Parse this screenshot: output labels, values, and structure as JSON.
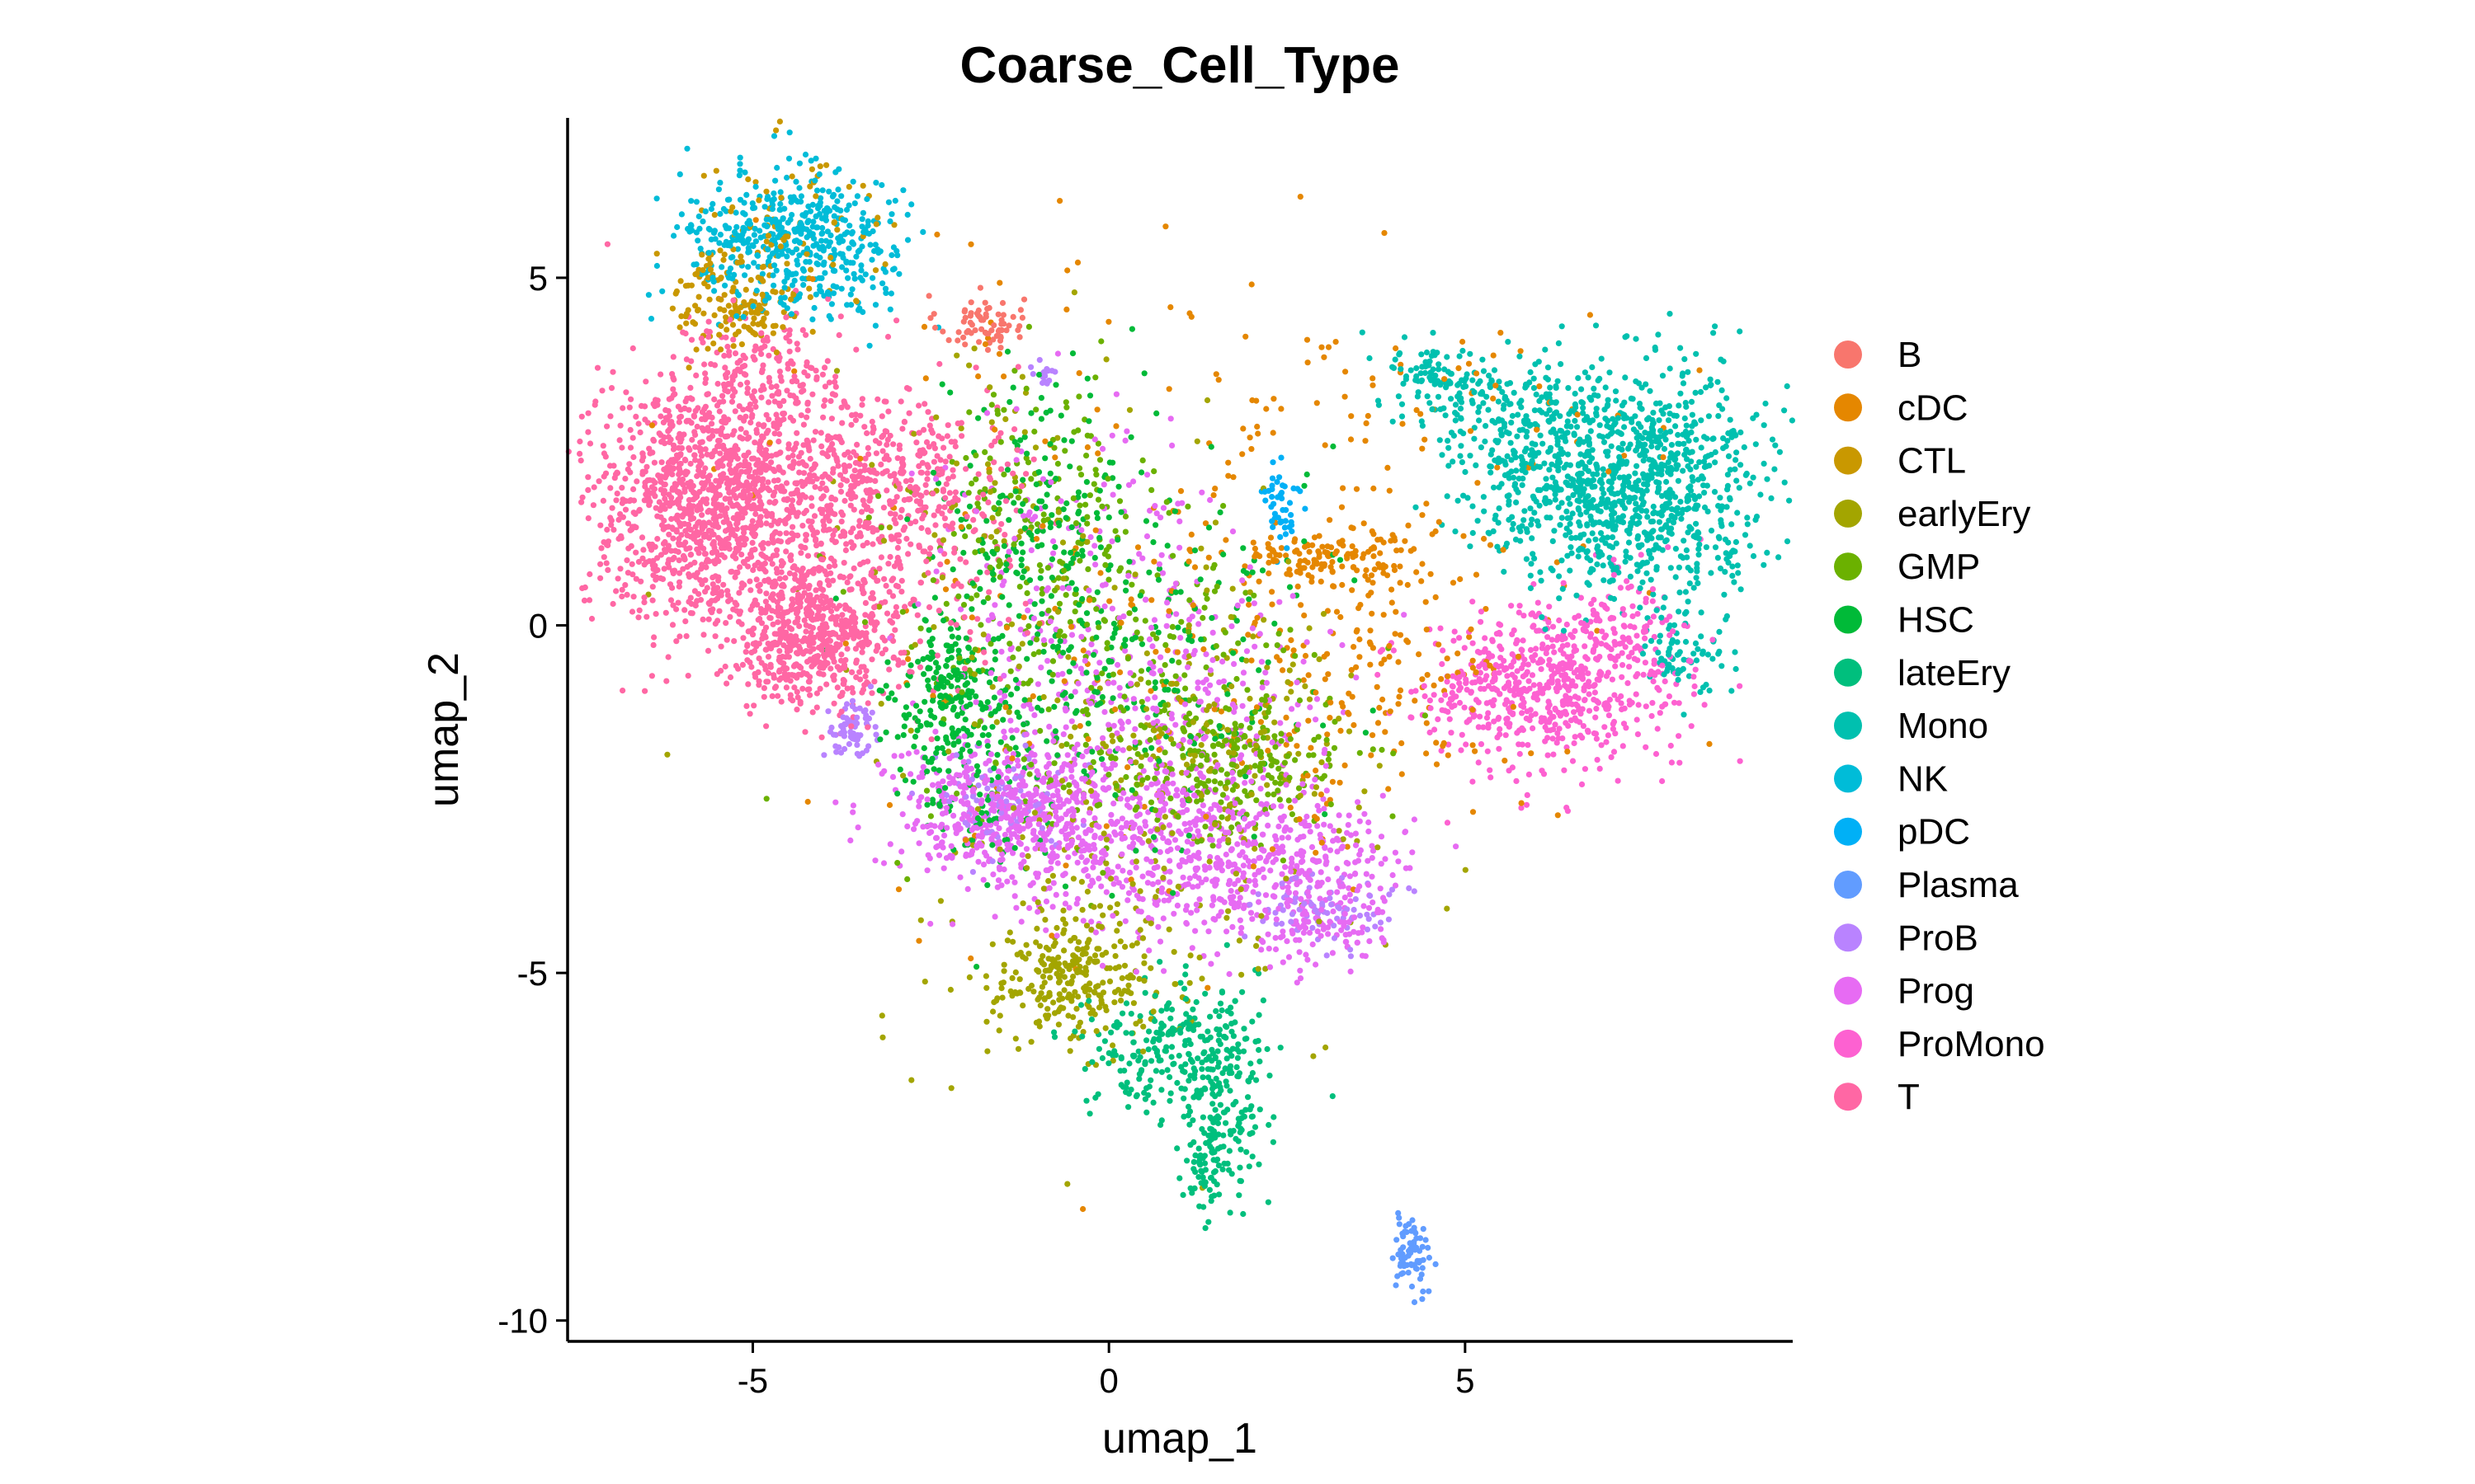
{
  "chart_data": {
    "type": "scatter",
    "title": "Coarse_Cell_Type",
    "xlabel": "umap_1",
    "ylabel": "umap_2",
    "xlim": [
      -7.6,
      9.6
    ],
    "ylim": [
      -10.3,
      7.3
    ],
    "x_ticks": [
      -5,
      0,
      5
    ],
    "x_tick_labels": [
      "-5",
      "0",
      "5"
    ],
    "y_ticks": [
      -10,
      -5,
      0,
      5
    ],
    "y_tick_labels": [
      "-10",
      "-5",
      "0",
      "5"
    ],
    "grid": false,
    "legend_position": "right",
    "series": [
      {
        "name": "B",
        "color": "#F8766D",
        "clusters": [
          [
            -1.8,
            4.35,
            0.3,
            0.2,
            70
          ]
        ]
      },
      {
        "name": "cDC",
        "color": "#E58700",
        "clusters": [
          [
            3.1,
            1.0,
            0.7,
            0.2,
            120
          ],
          [
            3.8,
            -0.5,
            1.2,
            1.3,
            160
          ],
          [
            2.0,
            0.5,
            2.5,
            2.0,
            130
          ],
          [
            0.2,
            0.8,
            2.8,
            2.8,
            120
          ],
          [
            4.8,
            3.2,
            1.4,
            0.5,
            50
          ]
        ]
      },
      {
        "name": "CTL",
        "color": "#C99800",
        "clusters": [
          [
            -5.2,
            4.7,
            0.45,
            0.4,
            150
          ],
          [
            -4.5,
            5.7,
            0.8,
            0.6,
            70
          ]
        ]
      },
      {
        "name": "earlyEry",
        "color": "#A3A500",
        "clusters": [
          [
            -0.5,
            -5.1,
            0.55,
            0.45,
            250
          ],
          [
            1.5,
            -1.5,
            1.0,
            1.0,
            140
          ],
          [
            0.3,
            -3.5,
            1.8,
            1.5,
            180
          ],
          [
            -1.5,
            1.5,
            1.2,
            1.2,
            90
          ]
        ]
      },
      {
        "name": "GMP",
        "color": "#6BB100",
        "clusters": [
          [
            1.6,
            -2.0,
            0.9,
            0.5,
            220
          ],
          [
            0.0,
            -1.0,
            1.5,
            1.5,
            240
          ],
          [
            -1.0,
            1.5,
            0.9,
            1.0,
            170
          ]
        ]
      },
      {
        "name": "HSC",
        "color": "#00BA38",
        "clusters": [
          [
            -2.2,
            -1.0,
            0.4,
            0.5,
            200
          ],
          [
            -1.0,
            1.5,
            0.7,
            1.0,
            180
          ],
          [
            0.3,
            -0.5,
            1.3,
            1.5,
            230
          ],
          [
            -1.8,
            -2.2,
            0.5,
            0.6,
            90
          ]
        ]
      },
      {
        "name": "lateEry",
        "color": "#00BF7D",
        "clusters": [
          [
            0.9,
            -6.1,
            0.6,
            0.5,
            250
          ],
          [
            1.6,
            -7.0,
            0.3,
            0.6,
            140
          ],
          [
            1.4,
            -7.8,
            0.15,
            0.3,
            45
          ]
        ]
      },
      {
        "name": "Mono",
        "color": "#00C0AF",
        "clusters": [
          [
            7.5,
            2.1,
            0.9,
            0.8,
            900
          ],
          [
            6.0,
            2.2,
            0.6,
            0.6,
            220
          ],
          [
            4.6,
            3.6,
            0.35,
            0.25,
            90
          ],
          [
            8.1,
            -0.4,
            0.3,
            0.3,
            70
          ],
          [
            5.5,
            3.0,
            0.6,
            0.35,
            100
          ]
        ]
      },
      {
        "name": "NK",
        "color": "#00BCD8",
        "clusters": [
          [
            -4.6,
            5.6,
            0.7,
            0.5,
            380
          ],
          [
            -3.8,
            5.2,
            0.5,
            0.5,
            120
          ]
        ]
      },
      {
        "name": "pDC",
        "color": "#00B0F6",
        "clusters": [
          [
            2.4,
            1.8,
            0.12,
            0.3,
            45
          ]
        ]
      },
      {
        "name": "Plasma",
        "color": "#619CFF",
        "clusters": [
          [
            4.25,
            -9.0,
            0.12,
            0.28,
            70
          ]
        ]
      },
      {
        "name": "ProB",
        "color": "#B983FF",
        "clusters": [
          [
            -3.6,
            -1.5,
            0.2,
            0.2,
            70
          ],
          [
            -0.9,
            3.6,
            0.08,
            0.08,
            18
          ],
          [
            3.0,
            -4.1,
            0.5,
            0.3,
            80
          ],
          [
            -1.5,
            -2.5,
            0.5,
            0.4,
            70
          ]
        ]
      },
      {
        "name": "Prog",
        "color": "#E76BF3",
        "clusters": [
          [
            -1.5,
            -2.7,
            0.8,
            0.5,
            480
          ],
          [
            0.5,
            -3.2,
            1.2,
            0.7,
            420
          ],
          [
            2.6,
            -3.5,
            0.8,
            0.5,
            260
          ],
          [
            1.0,
            -1.5,
            1.2,
            1.1,
            280
          ],
          [
            -0.4,
            0.4,
            1.0,
            1.2,
            200
          ],
          [
            2.9,
            -4.3,
            0.5,
            0.3,
            90
          ]
        ]
      },
      {
        "name": "ProMono",
        "color": "#FD61D1",
        "clusters": [
          [
            6.2,
            -0.9,
            0.8,
            0.6,
            520
          ],
          [
            7.3,
            -0.3,
            0.5,
            0.6,
            120
          ],
          [
            5.0,
            -1.0,
            0.4,
            0.4,
            70
          ]
        ]
      },
      {
        "name": "T",
        "color": "#FF67A4",
        "clusters": [
          [
            -5.3,
            1.7,
            1.1,
            0.9,
            1200
          ],
          [
            -4.2,
            -0.2,
            0.6,
            0.5,
            550
          ],
          [
            -5.8,
            2.0,
            0.6,
            1.0,
            300
          ],
          [
            -2.9,
            2.3,
            0.9,
            0.6,
            250
          ],
          [
            -2.5,
            0.9,
            0.7,
            0.8,
            140
          ],
          [
            -4.8,
            3.6,
            0.6,
            0.45,
            120
          ]
        ]
      }
    ]
  }
}
